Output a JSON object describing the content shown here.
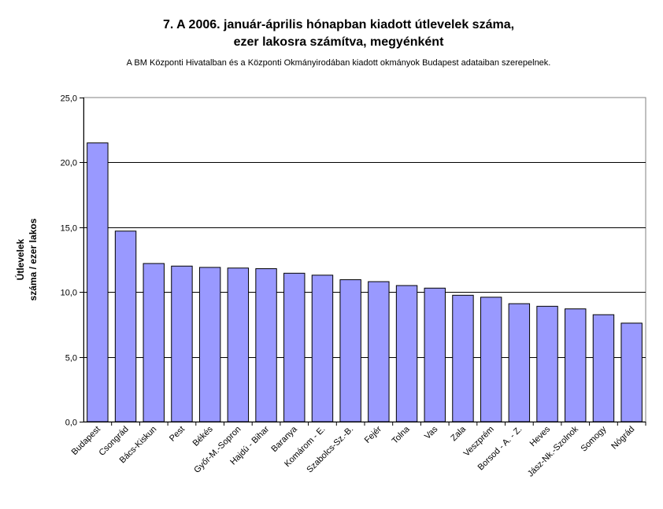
{
  "chart_data": {
    "type": "bar",
    "title_line1": "7. A 2006. január-április hónapban kiadott útlevelek száma,",
    "title_line2": "ezer lakosra számítva, megyénként",
    "subtitle": "A BM Központi Hivatalban és a Központi Okmányirodában kiadott okmányok Budapest adataiban szerepelnek.",
    "ylabel_line1": "Útlevelek",
    "ylabel_line2": "száma / ezer lakos",
    "xlabel": "",
    "ylim": [
      0,
      25
    ],
    "yticks": [
      0,
      5,
      10,
      15,
      20,
      25
    ],
    "ytick_labels": [
      "0,0",
      "5,0",
      "10,0",
      "15,0",
      "20,0",
      "25,0"
    ],
    "grid": true,
    "bar_color": "#9999ff",
    "plot_bg": "#ffffff",
    "categories": [
      "Budapest",
      "Csongrád",
      "Bács-Kiskun",
      "Pest",
      "Békés",
      "Győr-M.-Sopron",
      "Hajdú - Bihar",
      "Baranya",
      "Komárom - E.",
      "Szabolcs-Sz.-B.",
      "Fejér",
      "Tolna",
      "Vas",
      "Zala",
      "Veszprém",
      "Borsod - A. - Z.",
      "Heves",
      "Jász-Nk.-Szolnok",
      "Somogy",
      "Nógrád"
    ],
    "values": [
      21.5,
      14.7,
      12.2,
      12.0,
      11.9,
      11.85,
      11.8,
      11.45,
      11.3,
      10.95,
      10.8,
      10.5,
      10.3,
      9.75,
      9.6,
      9.1,
      8.9,
      8.7,
      8.25,
      7.6
    ]
  }
}
